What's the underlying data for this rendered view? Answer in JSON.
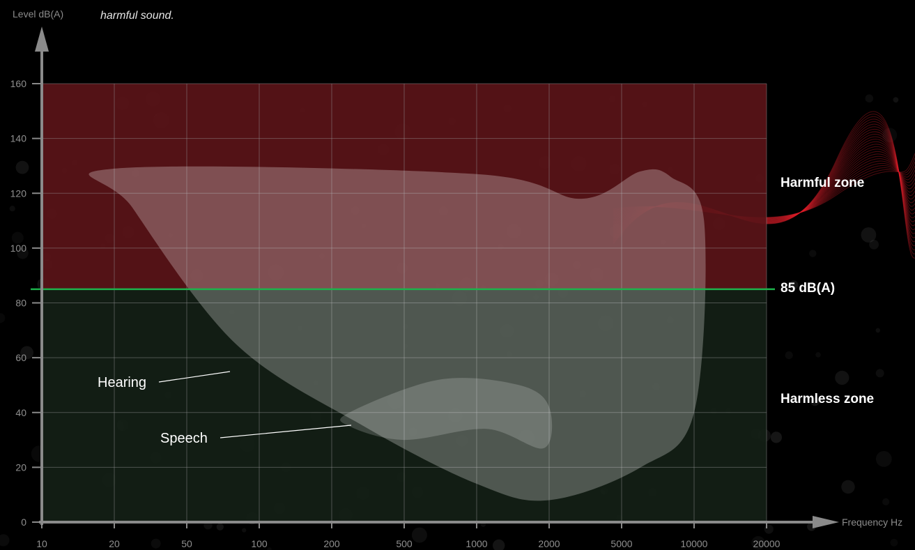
{
  "chart_data": {
    "type": "area",
    "caption": "harmful sound.",
    "xlabel": "Frequency Hz",
    "ylabel": "Level dB(A)",
    "x_scale": "log",
    "x_ticks": [
      10,
      20,
      50,
      100,
      200,
      500,
      1000,
      2000,
      5000,
      10000,
      20000
    ],
    "y_ticks": [
      0,
      20,
      40,
      60,
      80,
      100,
      120,
      140,
      160
    ],
    "ylim": [
      0,
      160
    ],
    "grid": true,
    "threshold": {
      "value": 85,
      "label": "85 dB(A)",
      "color": "#1db14b"
    },
    "zones": [
      {
        "name": "Harmful zone",
        "from": 85,
        "to": 160,
        "color": "#5a1418"
      },
      {
        "name": "Harmless zone",
        "from": 0,
        "to": 85,
        "color": "#142016"
      }
    ],
    "regions": [
      {
        "name": "Hearing",
        "points": [
          [
            20,
            129
          ],
          [
            1000,
            127
          ],
          [
            3000,
            118
          ],
          [
            6000,
            128
          ],
          [
            8000,
            126
          ],
          [
            11000,
            110
          ],
          [
            10000,
            40
          ],
          [
            6000,
            20
          ],
          [
            2000,
            8
          ],
          [
            1000,
            14
          ],
          [
            300,
            35
          ],
          [
            80,
            65
          ],
          [
            25,
            115
          ]
        ]
      },
      {
        "name": "Speech",
        "points": [
          [
            250,
            40
          ],
          [
            700,
            52
          ],
          [
            1500,
            50
          ],
          [
            2000,
            42
          ],
          [
            1900,
            27
          ],
          [
            1100,
            34
          ],
          [
            500,
            30
          ],
          [
            250,
            35
          ]
        ]
      }
    ]
  },
  "colors": {
    "background": "#000000",
    "harmful": "#5a1418",
    "harmless": "#142016",
    "threshold": "#1db14b",
    "grid": "#9a9a9a",
    "axis": "#8a8a8a",
    "region_fill": "#ffffff"
  }
}
